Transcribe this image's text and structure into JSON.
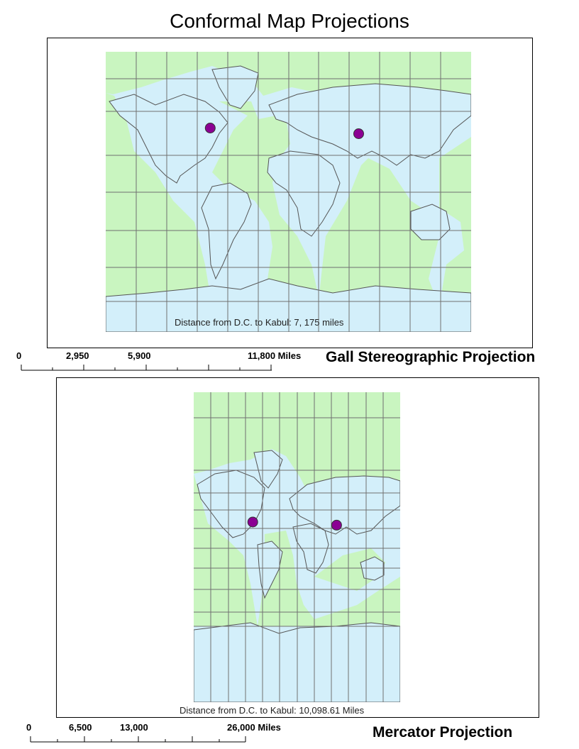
{
  "title": "Conformal Map Projections",
  "colors": {
    "land": "#c9f5c0",
    "water": "#d3effa",
    "border": "#555555",
    "graticule": "#707070",
    "marker": "#8b0093"
  },
  "maps": [
    {
      "projection_label": "Gall Stereographic Projection",
      "distance_label": "Distance from D.C. to Kabul: 7, 175 miles",
      "markers": [
        {
          "name": "Washington D.C.",
          "lon": -77.04,
          "lat": 38.9
        },
        {
          "name": "Kabul",
          "lon": 69.17,
          "lat": 34.53
        }
      ],
      "scale_labels": [
        "0",
        "2,950",
        "5,900",
        "11,800 Miles"
      ]
    },
    {
      "projection_label": "Mercator Projection",
      "distance_label": "Distance from D.C. to Kabul: 10,098.61 Miles",
      "markers": [
        {
          "name": "Washington D.C.",
          "lon": -77.04,
          "lat": 38.9
        },
        {
          "name": "Kabul",
          "lon": 69.17,
          "lat": 34.53
        }
      ],
      "scale_labels": [
        "0",
        "6,500",
        "13,000",
        "26,000 Miles"
      ]
    }
  ]
}
